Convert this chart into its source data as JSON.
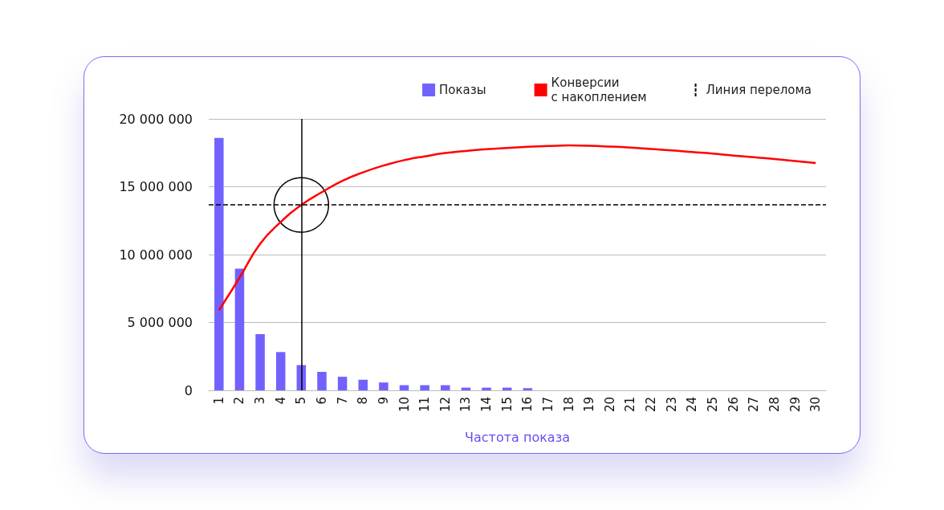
{
  "chart_data": {
    "type": "bar",
    "xlabel": "Частота показа",
    "categories": [
      "1",
      "2",
      "3",
      "4",
      "5",
      "6",
      "7",
      "8",
      "9",
      "10",
      "11",
      "12",
      "13",
      "14",
      "15",
      "16",
      "17",
      "18",
      "19",
      "20",
      "21",
      "22",
      "23",
      "24",
      "25",
      "26",
      "27",
      "28",
      "29",
      "30"
    ],
    "series": [
      {
        "name": "Показы",
        "color": "#7262fd",
        "values": [
          18600000,
          8960000,
          4140000,
          2820000,
          1860000,
          1360000,
          1000000,
          780000,
          580000,
          380000,
          380000,
          380000,
          200000,
          200000,
          200000,
          160000,
          null,
          null,
          null,
          null,
          null,
          null,
          null,
          null,
          null,
          null,
          null,
          null,
          null,
          null
        ]
      },
      {
        "name": "Конверсии\nс накоплением",
        "type": "line",
        "color": "#ff0000",
        "values": [
          5900000,
          8300000,
          10800000,
          12400000,
          13660000,
          14600000,
          15440000,
          16060000,
          16560000,
          16960000,
          17240000,
          17480000,
          17640000,
          17760000,
          17860000,
          17940000,
          18000000,
          18040000,
          18020000,
          17960000,
          17880000,
          17780000,
          17680000,
          17560000,
          17440000,
          17300000,
          17180000,
          17040000,
          16900000,
          16740000
        ]
      }
    ],
    "ylim": [
      0,
      20000000
    ],
    "yticks": [
      {
        "value": 0,
        "label": "0"
      },
      {
        "value": 5000000,
        "label": "5 000 000"
      },
      {
        "value": 10000000,
        "label": "10 000 000"
      },
      {
        "value": 15000000,
        "label": "15 000 000"
      },
      {
        "value": 20000000,
        "label": "20 000 000"
      }
    ],
    "ref_lines": [
      {
        "axis": "x",
        "value": "5",
        "color": "#000000",
        "line_style": "solid"
      },
      {
        "axis": "y",
        "value": 13660000,
        "label": "Линия перелома",
        "color": "#000000",
        "line_style": "dashed"
      }
    ],
    "grid": "y",
    "legend": "top right",
    "marker": "none"
  }
}
